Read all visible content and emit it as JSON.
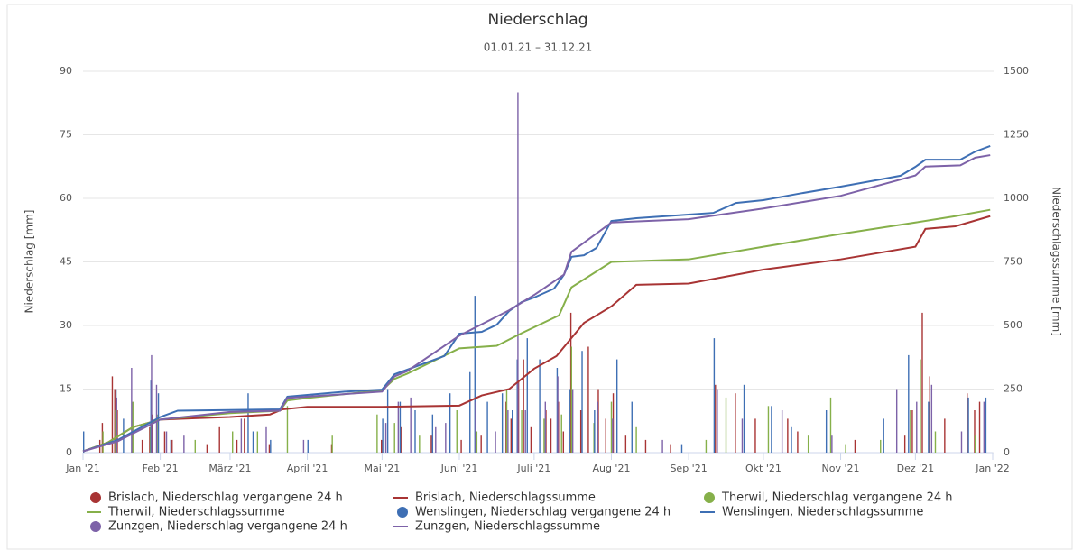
{
  "chart_data": {
    "type": "combo",
    "title": "Niederschlag",
    "subtitle": "01.01.21 – 31.12.21",
    "y_label": "Niederschlag [mm]",
    "y2_label": "Niederschlagssumme [mm]",
    "xlim": [
      0,
      365
    ],
    "xticks": [
      {
        "value": 0,
        "label": "Jan '21"
      },
      {
        "value": 31,
        "label": "Feb '21"
      },
      {
        "value": 59,
        "label": "März '21"
      },
      {
        "value": 90,
        "label": "April '21"
      },
      {
        "value": 120,
        "label": "Mai '21"
      },
      {
        "value": 151,
        "label": "Juni '21"
      },
      {
        "value": 181,
        "label": "Juli '21"
      },
      {
        "value": 212,
        "label": "Aug '21"
      },
      {
        "value": 243,
        "label": "Sep '21"
      },
      {
        "value": 273,
        "label": "Okt '21"
      },
      {
        "value": 304,
        "label": "Nov '21"
      },
      {
        "value": 334,
        "label": "Dez '21"
      },
      {
        "value": 365,
        "label": "Jan '22"
      }
    ],
    "ylim": [
      0,
      90
    ],
    "yticks": [
      0,
      15,
      30,
      45,
      60,
      75,
      90
    ],
    "y2lim": [
      0,
      1500
    ],
    "y2ticks": [
      0,
      250,
      500,
      750,
      1000,
      1250,
      1500
    ],
    "grid": true,
    "series": [
      {
        "name": "Brislach, Niederschlag vergangene 24 h",
        "type": "bar",
        "color": "#a83434",
        "x": [
          7,
          8,
          12,
          13,
          14,
          20,
          24,
          27,
          28,
          33,
          36,
          50,
          55,
          62,
          65,
          75,
          100,
          120,
          128,
          140,
          152,
          160,
          170,
          172,
          175,
          177,
          180,
          186,
          188,
          191,
          193,
          196,
          200,
          203,
          207,
          210,
          213,
          218,
          226,
          236,
          254,
          262,
          270,
          283,
          287,
          310,
          330,
          333,
          337,
          340,
          346,
          355,
          358,
          360
        ],
        "values": [
          3,
          7,
          18,
          15,
          10,
          4,
          3,
          6,
          9,
          5,
          3,
          2,
          6,
          3,
          8,
          2,
          2,
          3,
          6,
          4,
          3,
          4,
          12,
          8,
          17,
          22,
          6,
          10,
          8,
          12,
          5,
          33,
          10,
          25,
          15,
          8,
          14,
          4,
          3,
          2,
          16,
          14,
          8,
          8,
          5,
          3,
          4,
          10,
          33,
          18,
          8,
          14,
          10,
          12
        ]
      },
      {
        "name": "Brislach, Niederschlagssumme",
        "type": "line",
        "axis": "y2",
        "color": "#a83434",
        "x": [
          0,
          10,
          20,
          31,
          45,
          59,
          75,
          80,
          90,
          120,
          151,
          160,
          171,
          181,
          190,
          201,
          212,
          222,
          243,
          273,
          304,
          334,
          338,
          350,
          364
        ],
        "values": [
          5,
          40,
          100,
          130,
          135,
          140,
          150,
          170,
          180,
          180,
          185,
          225,
          250,
          330,
          380,
          510,
          575,
          660,
          665,
          720,
          760,
          810,
          880,
          890,
          930
        ]
      },
      {
        "name": "Therwil, Niederschlag vergangene 24 h",
        "type": "bar",
        "color": "#86b04a",
        "x": [
          8,
          13,
          20,
          27,
          30,
          45,
          60,
          70,
          82,
          100,
          118,
          125,
          135,
          150,
          158,
          170,
          176,
          185,
          192,
          196,
          205,
          212,
          222,
          250,
          258,
          275,
          291,
          300,
          306,
          320,
          332,
          336,
          342,
          358
        ],
        "values": [
          5,
          10,
          12,
          6,
          9,
          3,
          5,
          5,
          11,
          4,
          9,
          7,
          4,
          10,
          5,
          15,
          10,
          8,
          9,
          25,
          7,
          12,
          6,
          3,
          13,
          11,
          4,
          13,
          2,
          3,
          10,
          22,
          5,
          4
        ]
      },
      {
        "name": "Therwil, Niederschlagssumme",
        "type": "line",
        "axis": "y2",
        "color": "#86b04a",
        "x": [
          0,
          10,
          20,
          31,
          59,
          79,
          82,
          90,
          120,
          125,
          130,
          151,
          166,
          176,
          191,
          196,
          212,
          243,
          273,
          304,
          334,
          350,
          364
        ],
        "values": [
          5,
          40,
          100,
          130,
          155,
          165,
          205,
          215,
          245,
          290,
          310,
          410,
          420,
          470,
          540,
          650,
          750,
          760,
          810,
          860,
          905,
          930,
          955
        ]
      },
      {
        "name": "Wenslingen, Niederschlag vergangene 24 h",
        "type": "bar",
        "color": "#3e6fb4",
        "x": [
          0,
          13,
          16,
          27,
          30,
          35,
          66,
          68,
          75,
          90,
          120,
          122,
          127,
          133,
          140,
          147,
          155,
          157,
          162,
          168,
          172,
          174,
          178,
          183,
          190,
          195,
          200,
          205,
          214,
          220,
          240,
          253,
          265,
          276,
          284,
          298,
          321,
          331,
          339,
          355,
          362
        ],
        "values": [
          5,
          15,
          8,
          17,
          14,
          3,
          14,
          5,
          3,
          3,
          8,
          15,
          12,
          10,
          9,
          14,
          19,
          37,
          12,
          14,
          10,
          22,
          27,
          22,
          20,
          15,
          24,
          10,
          22,
          12,
          2,
          27,
          16,
          11,
          6,
          10,
          8,
          23,
          12,
          13,
          13
        ]
      },
      {
        "name": "Wenslingen, Niederschlagssumme",
        "type": "line",
        "axis": "y2",
        "color": "#3e6fb4",
        "x": [
          0,
          14,
          31,
          38,
          79,
          82,
          90,
          105,
          120,
          125,
          130,
          140,
          145,
          151,
          160,
          166,
          171,
          176,
          181,
          189,
          193,
          196,
          201,
          206,
          212,
          222,
          243,
          253,
          262,
          273,
          287,
          304,
          318,
          328,
          334,
          338,
          352,
          358,
          364
        ],
        "values": [
          5,
          50,
          140,
          165,
          170,
          220,
          227,
          240,
          248,
          308,
          326,
          362,
          380,
          468,
          475,
          503,
          557,
          592,
          610,
          645,
          700,
          770,
          776,
          805,
          911,
          922,
          936,
          943,
          982,
          993,
          1018,
          1046,
          1071,
          1089,
          1124,
          1152,
          1152,
          1184,
          1206
        ]
      },
      {
        "name": "Zunzgen, Niederschlag vergangene 24 h",
        "type": "bar",
        "color": "#7d62a8",
        "x": [
          13,
          19,
          27,
          29,
          33,
          40,
          63,
          73,
          88,
          121,
          126,
          131,
          141,
          145,
          157,
          165,
          170,
          174,
          177,
          185,
          190,
          196,
          206,
          212,
          232,
          254,
          264,
          280,
          300,
          326,
          334,
          340,
          352,
          361
        ],
        "values": [
          13,
          20,
          23,
          16,
          5,
          4,
          8,
          6,
          3,
          7,
          12,
          13,
          6,
          7,
          12,
          5,
          10,
          85,
          10,
          12,
          18,
          15,
          12,
          8,
          3,
          15,
          8,
          10,
          4,
          15,
          12,
          16,
          5,
          12
        ]
      },
      {
        "name": "Zunzgen, Niederschlagssumme",
        "type": "line",
        "axis": "y2",
        "color": "#7d62a8",
        "x": [
          0,
          14,
          31,
          59,
          79,
          82,
          120,
          125,
          130,
          151,
          171,
          181,
          193,
          196,
          212,
          243,
          273,
          304,
          334,
          338,
          352,
          358,
          364
        ],
        "values": [
          5,
          45,
          130,
          160,
          165,
          215,
          240,
          300,
          320,
          460,
          560,
          620,
          700,
          790,
          905,
          918,
          960,
          1010,
          1090,
          1125,
          1130,
          1160,
          1170
        ]
      }
    ]
  }
}
